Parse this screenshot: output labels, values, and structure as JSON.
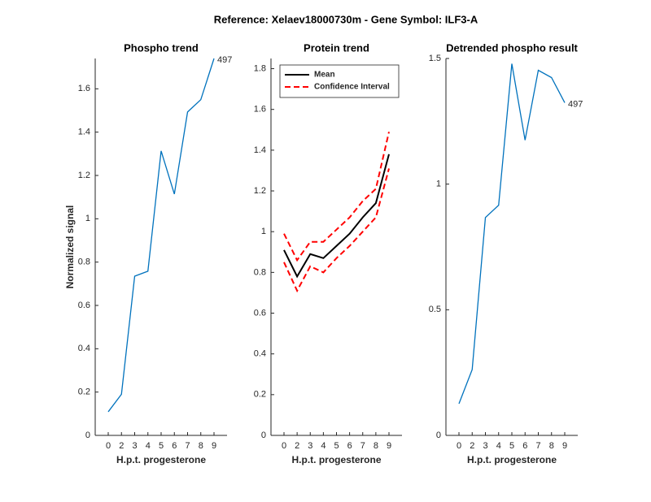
{
  "title": "Reference:  Xelaev18000730m - Gene Symbol:  ILF3-A",
  "chart_data": [
    {
      "type": "line",
      "title": "Phospho trend",
      "xlabel": "H.p.t. progesterone",
      "ylabel": "Normalized signal",
      "categories": [
        "0",
        "2",
        "3",
        "4",
        "5",
        "6",
        "7",
        "8",
        "9"
      ],
      "series": [
        {
          "color": "#0072bd",
          "values": [
            0.109,
            0.19,
            0.735,
            0.758,
            1.313,
            1.114,
            1.493,
            1.55,
            1.74
          ]
        }
      ],
      "annotation": "497",
      "ylim": [
        0,
        1.74
      ],
      "yticks": [
        0,
        0.2,
        0.4,
        0.6,
        0.8,
        1,
        1.2,
        1.4,
        1.6
      ]
    },
    {
      "type": "line",
      "title": "Protein trend",
      "xlabel": "H.p.t. progesterone",
      "categories": [
        "0",
        "2",
        "3",
        "4",
        "5",
        "6",
        "7",
        "8",
        "9"
      ],
      "series": [
        {
          "name": "Mean",
          "color": "#000000",
          "values": [
            0.91,
            0.78,
            0.89,
            0.87,
            0.93,
            0.99,
            1.07,
            1.14,
            1.38
          ]
        },
        {
          "name": "Confidence Interval",
          "color": "#ff0000",
          "dashed": true,
          "values": [
            0.99,
            0.86,
            0.95,
            0.95,
            1.01,
            1.07,
            1.15,
            1.21,
            1.49
          ],
          "lower_values": [
            0.85,
            0.71,
            0.83,
            0.8,
            0.87,
            0.93,
            1.0,
            1.07,
            1.31
          ]
        }
      ],
      "legend": "top-right",
      "ylim": [
        0,
        1.85
      ],
      "yticks": [
        0,
        0.2,
        0.4,
        0.6,
        0.8,
        1,
        1.2,
        1.4,
        1.6,
        1.8
      ]
    },
    {
      "type": "line",
      "title": "Detrended phospho result",
      "xlabel": "H.p.t. progesterone",
      "categories": [
        "0",
        "2",
        "3",
        "4",
        "5",
        "6",
        "7",
        "8",
        "9"
      ],
      "series": [
        {
          "color": "#0072bd",
          "values": [
            0.126,
            0.262,
            0.867,
            0.916,
            1.479,
            1.175,
            1.453,
            1.424,
            1.324
          ]
        }
      ],
      "annotation": "497",
      "ylim": [
        0,
        1.5
      ],
      "yticks": [
        0,
        0.5,
        1,
        1.5
      ]
    }
  ]
}
